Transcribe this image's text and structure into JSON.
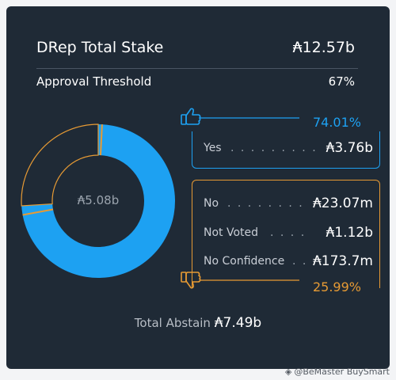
{
  "stake": {
    "label": "DRep Total Stake",
    "value": "₳12.57b"
  },
  "threshold": {
    "label": "Approval Threshold",
    "value": "67%"
  },
  "donut": {
    "center_label": "₳5.08b"
  },
  "yes": {
    "percent": "74.01%",
    "label": "Yes",
    "dots": ". . . . . . . . . . . . . . .",
    "value": "₳3.76b",
    "icon": "thumbs-up-icon"
  },
  "no_group": {
    "percent": "25.99%",
    "icon": "thumbs-down-icon",
    "rows": [
      {
        "label": "No",
        "dots": ". . . . . . . . . . . . .",
        "value": "₳23.07m"
      },
      {
        "label": "Not Voted",
        "dots": ". . . . . . .",
        "value": "₳1.12b"
      },
      {
        "label": "No Confidence",
        "dots": ". .",
        "value": "₳173.7m"
      }
    ]
  },
  "abstain": {
    "label": "Total Abstain",
    "value": "₳7.49b"
  },
  "watermark": {
    "text": "@BeMaster BuySmart"
  },
  "colors": {
    "background": "#1f2a36",
    "yes": "#1da1f2",
    "no": "#e69a34",
    "text": "#ffffff"
  },
  "chart_data": {
    "type": "pie",
    "slices": [
      {
        "value": 74.01,
        "color": "#1da1f2"
      },
      {
        "value": 25.99,
        "color": "#1f2a36",
        "outline": "#e69a34"
      }
    ]
  }
}
